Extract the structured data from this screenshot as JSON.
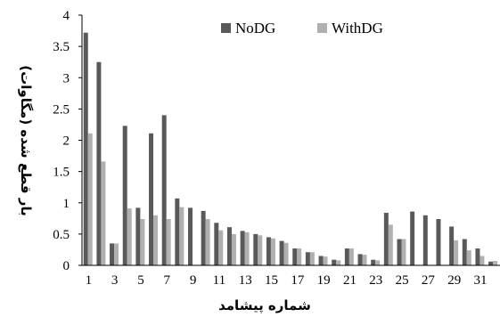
{
  "chart_data": {
    "type": "bar",
    "xlabel": "شماره پیشامد",
    "ylabel": "بار قطع شده (مگاوات)",
    "ylim": [
      0,
      4
    ],
    "yticks": [
      "0",
      "0.5",
      "1",
      "1.5",
      "2",
      "2.5",
      "3",
      "3.5",
      "4"
    ],
    "xticks": [
      "1",
      "3",
      "5",
      "7",
      "9",
      "11",
      "13",
      "15",
      "17",
      "19",
      "21",
      "23",
      "25",
      "27",
      "29",
      "31"
    ],
    "legend_position": "top-right",
    "grid": false,
    "categories": [
      "1",
      "2",
      "3",
      "4",
      "5",
      "6",
      "7",
      "8",
      "9",
      "10",
      "11",
      "12",
      "13",
      "14",
      "15",
      "16",
      "17",
      "18",
      "19",
      "20",
      "21",
      "22",
      "23",
      "24",
      "25",
      "26",
      "27",
      "28",
      "29",
      "30",
      "31",
      "32"
    ],
    "series": [
      {
        "name": "NoDG",
        "color": "#595959",
        "values": [
          3.72,
          3.25,
          0.35,
          2.23,
          0.92,
          2.11,
          2.4,
          1.07,
          0.92,
          0.87,
          0.68,
          0.61,
          0.55,
          0.5,
          0.45,
          0.39,
          0.27,
          0.21,
          0.15,
          0.09,
          0.27,
          0.18,
          0.09,
          0.84,
          0.42,
          0.86,
          0.8,
          0.74,
          0.62,
          0.42,
          0.27,
          0.06
        ]
      },
      {
        "name": "WithDG",
        "color": "#b0b0b0",
        "values": [
          2.11,
          1.66,
          0.35,
          0.91,
          0.74,
          0.8,
          0.74,
          0.93,
          0.0,
          0.74,
          0.56,
          0.5,
          0.53,
          0.48,
          0.43,
          0.36,
          0.27,
          0.21,
          0.14,
          0.08,
          0.27,
          0.17,
          0.08,
          0.65,
          0.42,
          0.0,
          0.0,
          0.0,
          0.4,
          0.24,
          0.15,
          0.07
        ]
      }
    ]
  }
}
